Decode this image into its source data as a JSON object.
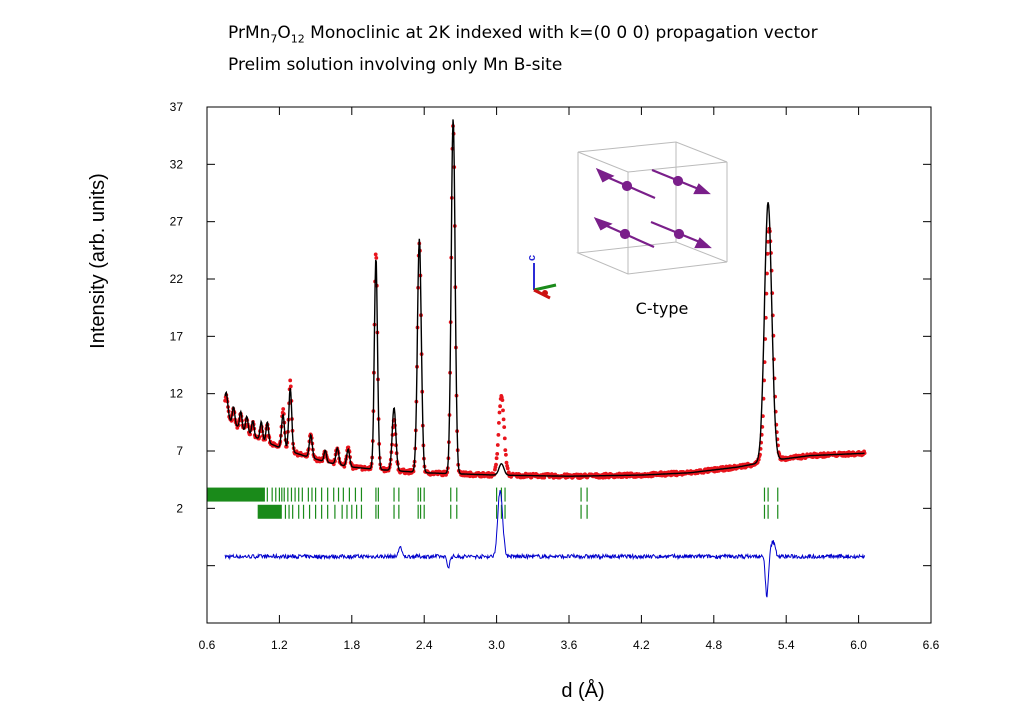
{
  "title": {
    "line1_pre": "PrMn",
    "line1_sub1": "7",
    "line1_mid": "O",
    "line1_sub2": "12",
    "line1_post": " Monoclinic at 2K indexed with k=(0 0 0) propagation vector",
    "line2": "Prelim solution involving only Mn B-site"
  },
  "inset": {
    "label": "C-type",
    "axis_label": "c"
  },
  "colors": {
    "observed": "#e8141c",
    "calculated": "#000000",
    "difference": "#0000cc",
    "ticks": "#1a8a1a"
  },
  "chart_data": {
    "type": "line",
    "xlabel": "d (Å)",
    "ylabel": "Intensity (arb. units)",
    "xlim": [
      0.6,
      6.6
    ],
    "ylim": [
      -8,
      37
    ],
    "x_ticks": [
      0.6,
      1.2,
      1.8,
      2.4,
      3.0,
      3.6,
      4.2,
      4.8,
      5.4,
      6.0,
      6.6
    ],
    "y_ticks": [
      2,
      7,
      12,
      17,
      22,
      27,
      32,
      37
    ],
    "x_range": [
      0.75,
      6.05
    ],
    "background": [
      [
        0.75,
        10.5
      ],
      [
        0.8,
        9.5
      ],
      [
        0.9,
        8.8
      ],
      [
        1.0,
        8.2
      ],
      [
        1.2,
        7.3
      ],
      [
        1.4,
        6.6
      ],
      [
        1.6,
        6.0
      ],
      [
        1.8,
        5.6
      ],
      [
        2.0,
        5.4
      ],
      [
        2.4,
        5.1
      ],
      [
        3.0,
        4.9
      ],
      [
        3.6,
        4.8
      ],
      [
        4.2,
        4.9
      ],
      [
        4.6,
        5.1
      ],
      [
        5.0,
        5.6
      ],
      [
        5.3,
        6.2
      ],
      [
        5.6,
        6.6
      ],
      [
        6.05,
        6.8
      ]
    ],
    "calc_peaks": [
      [
        0.76,
        1.8,
        0.012
      ],
      [
        0.82,
        1.5,
        0.01
      ],
      [
        0.88,
        1.5,
        0.01
      ],
      [
        0.93,
        1.4,
        0.01
      ],
      [
        0.98,
        1.3,
        0.01
      ],
      [
        1.05,
        1.6,
        0.01
      ],
      [
        1.1,
        1.8,
        0.01
      ],
      [
        1.23,
        3.0,
        0.012
      ],
      [
        1.29,
        5.5,
        0.012
      ],
      [
        1.46,
        2.0,
        0.012
      ],
      [
        1.58,
        1.0,
        0.01
      ],
      [
        1.68,
        1.4,
        0.012
      ],
      [
        1.77,
        1.5,
        0.012
      ],
      [
        2.0,
        18.5,
        0.013
      ],
      [
        2.15,
        5.5,
        0.015
      ],
      [
        2.36,
        20.4,
        0.016
      ],
      [
        2.64,
        31.0,
        0.016
      ],
      [
        3.04,
        1.0,
        0.02
      ],
      [
        5.25,
        22.6,
        0.03
      ]
    ],
    "obs_peaks": [
      [
        0.76,
        1.5,
        0.012
      ],
      [
        0.82,
        1.2,
        0.01
      ],
      [
        0.88,
        1.3,
        0.01
      ],
      [
        0.93,
        1.1,
        0.01
      ],
      [
        0.98,
        1.1,
        0.01
      ],
      [
        1.05,
        1.2,
        0.01
      ],
      [
        1.1,
        1.4,
        0.01
      ],
      [
        1.23,
        3.4,
        0.012
      ],
      [
        1.29,
        6.0,
        0.012
      ],
      [
        1.46,
        2.0,
        0.012
      ],
      [
        1.58,
        1.0,
        0.01
      ],
      [
        1.68,
        1.4,
        0.012
      ],
      [
        1.77,
        1.8,
        0.012
      ],
      [
        2.0,
        19.0,
        0.013
      ],
      [
        2.15,
        4.3,
        0.015
      ],
      [
        2.36,
        20.0,
        0.016
      ],
      [
        2.64,
        30.5,
        0.016
      ],
      [
        3.04,
        6.9,
        0.022
      ],
      [
        5.26,
        20.2,
        0.03
      ]
    ],
    "tick_rows": {
      "row1_y": 3.2,
      "row2_y": 1.7,
      "row1_band": [
        0.6,
        1.08
      ],
      "row2_band": [
        1.02,
        1.22
      ],
      "row1_positions": [
        1.1,
        1.14,
        1.17,
        1.2,
        1.22,
        1.24,
        1.27,
        1.3,
        1.33,
        1.36,
        1.39,
        1.44,
        1.47,
        1.5,
        1.55,
        1.6,
        1.65,
        1.69,
        1.73,
        1.78,
        1.83,
        1.88,
        2.0,
        2.02,
        2.15,
        2.19,
        2.35,
        2.37,
        2.4,
        2.62,
        2.67,
        3.0,
        3.04,
        3.07,
        3.7,
        3.75,
        5.22,
        5.25,
        5.33
      ],
      "row2_positions": [
        1.25,
        1.28,
        1.31,
        1.36,
        1.4,
        1.45,
        1.5,
        1.55,
        1.6,
        1.66,
        1.72,
        1.76,
        1.8,
        1.84,
        1.88,
        2.0,
        2.02,
        2.15,
        2.19,
        2.35,
        2.37,
        2.4,
        2.62,
        2.67,
        3.0,
        3.04,
        3.07,
        3.7,
        3.75,
        5.22,
        5.25,
        5.33
      ]
    },
    "difference": {
      "baseline": -2.2,
      "peaks": [
        [
          3.03,
          5.8,
          0.02
        ],
        [
          2.2,
          0.9,
          0.012
        ],
        [
          2.6,
          -0.9,
          0.012
        ],
        [
          5.24,
          -3.5,
          0.012
        ],
        [
          5.29,
          1.3,
          0.018
        ]
      ]
    }
  }
}
